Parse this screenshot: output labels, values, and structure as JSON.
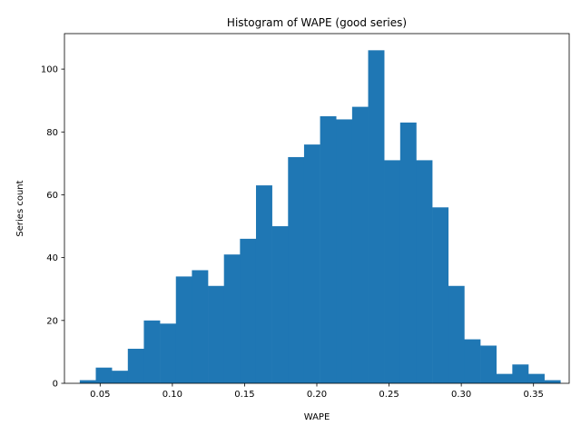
{
  "chart_data": {
    "type": "bar",
    "title": "Histogram of WAPE (good series)",
    "xlabel": "WAPE",
    "ylabel": "Series count",
    "xlim": [
      0.0253,
      0.3747
    ],
    "ylim": [
      0,
      111.3
    ],
    "xticks": [
      0.05,
      0.1,
      0.15,
      0.2,
      0.25,
      0.3,
      0.35
    ],
    "xtick_labels": [
      "0.05",
      "0.10",
      "0.15",
      "0.20",
      "0.25",
      "0.30",
      "0.35"
    ],
    "yticks": [
      0,
      20,
      40,
      60,
      80,
      100
    ],
    "ytick_labels": [
      "0",
      "20",
      "40",
      "60",
      "80",
      "100"
    ],
    "grid": false,
    "bar_color": "#1f77b4",
    "bin_edges": [
      0.0359,
      0.04699,
      0.05808,
      0.06917,
      0.08026,
      0.09135,
      0.10244,
      0.11353,
      0.12462,
      0.13571,
      0.1468,
      0.15789,
      0.16898,
      0.18007,
      0.19116,
      0.20225,
      0.21334,
      0.22443,
      0.23552,
      0.24661,
      0.2577,
      0.26879,
      0.27988,
      0.29097,
      0.30206,
      0.31315,
      0.32424,
      0.33533,
      0.34642,
      0.35751,
      0.3686
    ],
    "counts": [
      1,
      5,
      4,
      11,
      20,
      19,
      34,
      36,
      31,
      41,
      46,
      63,
      50,
      72,
      76,
      85,
      84,
      88,
      106,
      71,
      83,
      71,
      56,
      31,
      14,
      12,
      3,
      6,
      3,
      1
    ]
  }
}
